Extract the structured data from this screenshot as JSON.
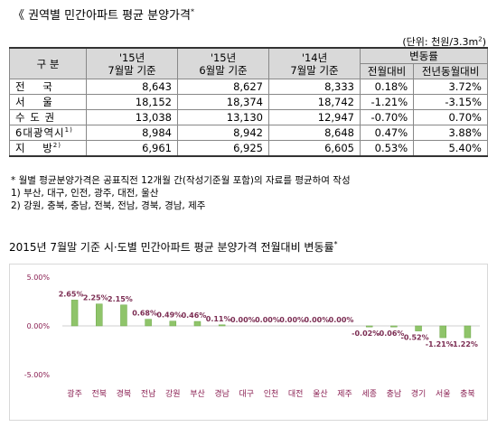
{
  "title": "《 권역별 민간아파트 평균 분양가격",
  "title_mark": "*",
  "unit_label": "(단위: 천원/3.3m",
  "unit_sup": "2",
  "unit_close": ")",
  "table": {
    "header_row1": [
      "구 분",
      "'15년\n7월말 기준",
      "'15년\n6월말 기준",
      "'14년\n7월말 기준",
      "변동률"
    ],
    "header_row2": [
      "전월대비",
      "전년동월대비"
    ],
    "rows": [
      {
        "region": "전    국",
        "sup": "",
        "jul15": "8,643",
        "jun15": "8,627",
        "jul14": "8,333",
        "mom": "0.18%",
        "yoy": "3.72%"
      },
      {
        "region": "서    울",
        "sup": "",
        "jul15": "18,152",
        "jun15": "18,374",
        "jul14": "18,742",
        "mom": "-1.21%",
        "yoy": "-3.15%"
      },
      {
        "region": "수 도 권",
        "sup": "",
        "jul15": "13,038",
        "jun15": "13,130",
        "jul14": "12,947",
        "mom": "-0.70%",
        "yoy": "0.70%"
      },
      {
        "region": "6대광역시",
        "sup": "1)",
        "jul15": "8,984",
        "jun15": "8,942",
        "jul14": "8,648",
        "mom": "0.47%",
        "yoy": "3.88%"
      },
      {
        "region": "지    방",
        "sup": "2)",
        "jul15": "6,961",
        "jun15": "6,925",
        "jul14": "6,605",
        "mom": "0.53%",
        "yoy": "5.40%"
      }
    ]
  },
  "notes": [
    "* 월별 평균분양가격은 공표직전 12개월 간(작성기준월 포함)의 자료를 평균하여 작성",
    "1) 부산, 대구, 인전, 광주, 대전, 울산",
    "2) 강원, 충북, 충남, 전북, 전남, 경북, 경남, 제주"
  ],
  "chart_title": "2015년 7월말 기준 시·도별 민간아파트 평균 분양가격 전월대비 변동률",
  "chart_title_mark": "*",
  "colors": {
    "bar": "#8fc46a",
    "bar_dark": "#6ea84a",
    "label": "#7b2c52",
    "axis_label": "#8a1f52"
  },
  "chart_data": {
    "type": "bar",
    "categories": [
      "광주",
      "전북",
      "경북",
      "전남",
      "강원",
      "부산",
      "경남",
      "대구",
      "인천",
      "대전",
      "울산",
      "제주",
      "세종",
      "충남",
      "경기",
      "서울",
      "충북"
    ],
    "values": [
      2.65,
      2.25,
      2.15,
      0.68,
      0.49,
      0.46,
      0.11,
      0.0,
      0.0,
      0.0,
      0.0,
      0.0,
      -0.02,
      -0.06,
      -0.52,
      -1.21,
      -1.22
    ],
    "data_labels": [
      "2.65%",
      "2.25%",
      "2.15%",
      "0.68%",
      "0.49%",
      "0.46%",
      "0.11%",
      "0.00%",
      "0.00%",
      "0.00%",
      "0.00%",
      "0.00%",
      "-0.02%",
      "-0.06%",
      "-0.52%",
      "-1.21%",
      "-1.22%"
    ],
    "ylim": [
      -5,
      5
    ],
    "yticks": [
      5,
      0,
      -5
    ],
    "ytick_labels": [
      "5.00%",
      "0.00%",
      "-5.00%"
    ],
    "grid": false
  }
}
